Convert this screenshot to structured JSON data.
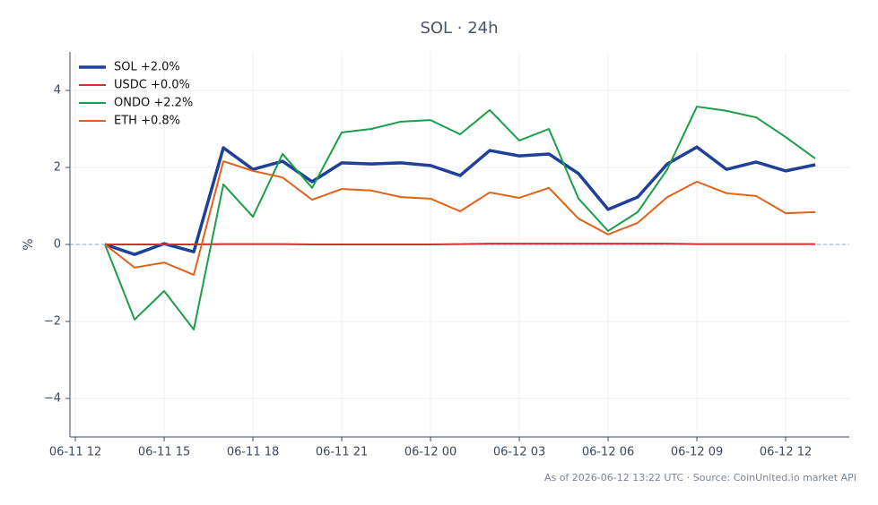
{
  "chart_data": {
    "type": "line",
    "title": "SOL · 24h",
    "y_label": "%",
    "footer": "As of 2026-06-12 13:22 UTC · Source: CoinUnited.io market API",
    "x": [
      "06-11 13",
      "06-11 14",
      "06-11 15",
      "06-11 16",
      "06-11 17",
      "06-11 18",
      "06-11 19",
      "06-11 20",
      "06-11 21",
      "06-11 22",
      "06-11 23",
      "06-12 00",
      "06-12 01",
      "06-12 02",
      "06-12 03",
      "06-12 04",
      "06-12 05",
      "06-12 06",
      "06-12 07",
      "06-12 08",
      "06-12 09",
      "06-12 10",
      "06-12 11",
      "06-12 12",
      "06-12 13"
    ],
    "series": [
      {
        "name": "SOL +2.0%",
        "color": "#1f3f99",
        "width": 3.5,
        "values": [
          0,
          -0.26,
          0.02,
          -0.19,
          2.51,
          1.95,
          2.16,
          1.63,
          2.12,
          2.09,
          2.12,
          2.05,
          1.79,
          2.44,
          2.3,
          2.35,
          1.84,
          0.91,
          1.23,
          2.09,
          2.53,
          1.95,
          2.14,
          1.91,
          2.07
        ]
      },
      {
        "name": "USDC +0.0%",
        "color": "#d62e2e",
        "width": 2,
        "values": [
          0,
          0,
          0,
          0,
          0.01,
          0.01,
          0.01,
          0,
          0,
          0,
          0,
          0,
          0.01,
          0.02,
          0.02,
          0.02,
          0.02,
          0.02,
          0.02,
          0.02,
          0.01,
          0.01,
          0.01,
          0.01,
          0.01
        ]
      },
      {
        "name": "ONDO +2.2%",
        "color": "#1a9e4a",
        "width": 2,
        "values": [
          0,
          -1.95,
          -1.21,
          -2.21,
          1.56,
          0.72,
          2.35,
          1.47,
          2.91,
          3.0,
          3.19,
          3.23,
          2.86,
          3.49,
          2.7,
          3.0,
          1.19,
          0.35,
          0.84,
          1.95,
          3.58,
          3.47,
          3.3,
          2.79,
          2.23
        ]
      },
      {
        "name": "ETH +0.8%",
        "color": "#e0621a",
        "width": 2,
        "values": [
          0,
          -0.6,
          -0.47,
          -0.79,
          2.16,
          1.91,
          1.74,
          1.16,
          1.44,
          1.4,
          1.23,
          1.19,
          0.86,
          1.35,
          1.21,
          1.47,
          0.67,
          0.26,
          0.56,
          1.23,
          1.63,
          1.33,
          1.26,
          0.81,
          0.84
        ]
      }
    ],
    "xlim": [
      "06-11 11:49",
      "06-12 14:09"
    ],
    "xticks": [
      "06-11 12",
      "06-11 15",
      "06-11 18",
      "06-11 21",
      "06-12 00",
      "06-12 03",
      "06-12 06",
      "06-12 09",
      "06-12 12"
    ],
    "ylim": [
      -5,
      5
    ],
    "yticks": [
      {
        "value": -4,
        "label": "−4"
      },
      {
        "value": -2,
        "label": "−2"
      },
      0,
      2,
      4
    ],
    "grid": true,
    "zero_line": true,
    "legend": "upper left"
  }
}
